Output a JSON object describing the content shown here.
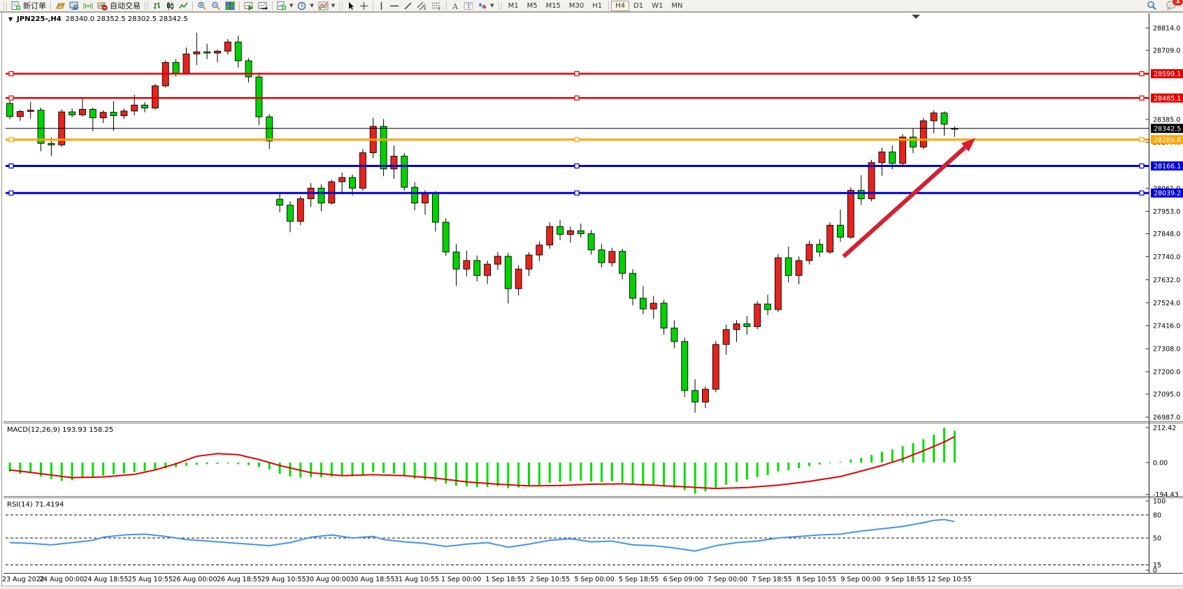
{
  "toolbar": {
    "new_order_label": "新订单",
    "autotrading_label": "自动交易",
    "timeframes": [
      "M1",
      "M5",
      "M15",
      "M30",
      "H1",
      "H4",
      "D1",
      "W1",
      "MN"
    ],
    "active_timeframe": "H4",
    "notification_badge": "1"
  },
  "chart_header": {
    "symbol_period": "JPN225-,H4",
    "ohlc_values": "28340.0 28352.5 28302.5 28342.5",
    "collapse_glyph": "▼"
  },
  "colors": {
    "bull": "#e6241e",
    "bear": "#00d400",
    "wick": "#000000",
    "macd_hist": "#00e000",
    "macd_signal": "#e60000",
    "rsi_line": "#3f97e8",
    "line_red": "#e60000",
    "line_orange": "#ffa500",
    "line_blue": "#0000dc",
    "current_line": "#000000",
    "arrow": "#d62030"
  },
  "chart_data": [
    {
      "type": "candlestick",
      "title": "JPN225-,H4",
      "last_ohlc": {
        "open": 28340.0,
        "high": 28352.5,
        "low": 28302.5,
        "close": 28342.5
      },
      "ylim": [
        26960,
        28850
      ],
      "y_ticks": [
        28814,
        28709,
        28385,
        28277,
        28061,
        27953,
        27848,
        27740,
        27632,
        27524,
        27416,
        27308,
        27200,
        27095,
        26987
      ],
      "hlines": [
        {
          "price": 28599.1,
          "color": "#e60000",
          "width": 2.5,
          "handles": true
        },
        {
          "price": 28485.1,
          "color": "#e60000",
          "width": 2.5,
          "handles": true
        },
        {
          "price": 28342.5,
          "color": "#000000",
          "width": 1,
          "handles": false,
          "current": true
        },
        {
          "price": 28289.8,
          "color": "#ffa500",
          "width": 3,
          "handles": true
        },
        {
          "price": 28166.1,
          "color": "#0000dc",
          "width": 3,
          "handles": true
        },
        {
          "price": 28039.2,
          "color": "#0000dc",
          "width": 3,
          "handles": true
        }
      ],
      "x_labels": [
        "23 Aug 2022",
        "24 Aug 00:00",
        "24 Aug 18:55",
        "25 Aug 10:55",
        "26 Aug 00:00",
        "26 Aug 18:55",
        "29 Aug 10:55",
        "30 Aug 00:00",
        "30 Aug 18:55",
        "31 Aug 10:55",
        "1 Sep 00:00",
        "1 Sep 18:55",
        "2 Sep 10:55",
        "5 Sep 00:00",
        "5 Sep 18:55",
        "6 Sep 09:00",
        "7 Sep 00:00",
        "7 Sep 18:55",
        "8 Sep 10:55",
        "9 Sep 00:00",
        "9 Sep 18:55",
        "12 Sep 10:55"
      ],
      "arrow": {
        "from_index": 80.3,
        "from_price": 27741,
        "to_index": 93.0,
        "to_price": 28297
      },
      "candles": [
        [
          28460,
          28472,
          28385,
          28398
        ],
        [
          28398,
          28430,
          28378,
          28422
        ],
        [
          28422,
          28468,
          28388,
          28428
        ],
        [
          28428,
          28440,
          28235,
          28272
        ],
        [
          28272,
          28300,
          28212,
          28265
        ],
        [
          28265,
          28432,
          28256,
          28420
        ],
        [
          28420,
          28436,
          28394,
          28406
        ],
        [
          28406,
          28482,
          28398,
          28432
        ],
        [
          28432,
          28440,
          28330,
          28392
        ],
        [
          28392,
          28428,
          28368,
          28418
        ],
        [
          28418,
          28470,
          28332,
          28402
        ],
        [
          28402,
          28436,
          28388,
          28424
        ],
        [
          28424,
          28500,
          28404,
          28452
        ],
        [
          28452,
          28466,
          28418,
          28438
        ],
        [
          28438,
          28552,
          28430,
          28542
        ],
        [
          28542,
          28662,
          28534,
          28652
        ],
        [
          28652,
          28668,
          28586,
          28602
        ],
        [
          28602,
          28722,
          28594,
          28692
        ],
        [
          28692,
          28792,
          28640,
          28702
        ],
        [
          28702,
          28740,
          28668,
          28696
        ],
        [
          28696,
          28712,
          28654,
          28705
        ],
        [
          28705,
          28762,
          28688,
          28748
        ],
        [
          28748,
          28778,
          28628,
          28660
        ],
        [
          28660,
          28672,
          28558,
          28584
        ],
        [
          28584,
          28600,
          28358,
          28397
        ],
        [
          28397,
          28410,
          28246,
          28283
        ],
        [
          28010,
          28034,
          27948,
          27982
        ],
        [
          27982,
          28000,
          27855,
          27906
        ],
        [
          27906,
          28026,
          27888,
          28012
        ],
        [
          28012,
          28086,
          27974,
          28062
        ],
        [
          28062,
          28080,
          27954,
          27992
        ],
        [
          27992,
          28102,
          27984,
          28092
        ],
        [
          28092,
          28136,
          28040,
          28112
        ],
        [
          28112,
          28126,
          28028,
          28062
        ],
        [
          28062,
          28246,
          28050,
          28228
        ],
        [
          28228,
          28392,
          28204,
          28352
        ],
        [
          28352,
          28386,
          28118,
          28152
        ],
        [
          28152,
          28262,
          28106,
          28212
        ],
        [
          28212,
          28226,
          28050,
          28066
        ],
        [
          28066,
          28090,
          27958,
          27992
        ],
        [
          27992,
          28052,
          27938,
          28036
        ],
        [
          28036,
          28048,
          27858,
          27902
        ],
        [
          27902,
          27920,
          27744,
          27762
        ],
        [
          27762,
          27800,
          27604,
          27682
        ],
        [
          27682,
          27768,
          27648,
          27722
        ],
        [
          27722,
          27746,
          27624,
          27652
        ],
        [
          27652,
          27722,
          27612,
          27705
        ],
        [
          27705,
          27762,
          27678,
          27742
        ],
        [
          27742,
          27758,
          27520,
          27590
        ],
        [
          27590,
          27700,
          27558,
          27682
        ],
        [
          27682,
          27762,
          27650,
          27748
        ],
        [
          27748,
          27812,
          27720,
          27795
        ],
        [
          27795,
          27902,
          27778,
          27882
        ],
        [
          27882,
          27912,
          27818,
          27845
        ],
        [
          27845,
          27882,
          27806,
          27862
        ],
        [
          27862,
          27896,
          27830,
          27848
        ],
        [
          27848,
          27866,
          27750,
          27772
        ],
        [
          27772,
          27800,
          27690,
          27712
        ],
        [
          27712,
          27782,
          27694,
          27765
        ],
        [
          27765,
          27778,
          27634,
          27662
        ],
        [
          27662,
          27682,
          27512,
          27545
        ],
        [
          27545,
          27602,
          27470,
          27495
        ],
        [
          27495,
          27556,
          27450,
          27522
        ],
        [
          27522,
          27538,
          27374,
          27405
        ],
        [
          27405,
          27442,
          27310,
          27342
        ],
        [
          27342,
          27360,
          27082,
          27112
        ],
        [
          27112,
          27165,
          27008,
          27058
        ],
        [
          27058,
          27132,
          27030,
          27118
        ],
        [
          27118,
          27345,
          27104,
          27328
        ],
        [
          27328,
          27422,
          27280,
          27398
        ],
        [
          27398,
          27442,
          27340,
          27425
        ],
        [
          27425,
          27462,
          27374,
          27412
        ],
        [
          27412,
          27532,
          27400,
          27518
        ],
        [
          27518,
          27562,
          27466,
          27492
        ],
        [
          27492,
          27752,
          27480,
          27735
        ],
        [
          27735,
          27788,
          27620,
          27652
        ],
        [
          27652,
          27742,
          27610,
          27722
        ],
        [
          27722,
          27815,
          27704,
          27798
        ],
        [
          27798,
          27822,
          27740,
          27762
        ],
        [
          27762,
          27902,
          27754,
          27888
        ],
        [
          27888,
          27962,
          27810,
          27832
        ],
        [
          27832,
          28065,
          27824,
          28052
        ],
        [
          28052,
          28122,
          27984,
          28012
        ],
        [
          28012,
          28195,
          28000,
          28182
        ],
        [
          28182,
          28252,
          28120,
          28232
        ],
        [
          28232,
          28262,
          28150,
          28178
        ],
        [
          28178,
          28315,
          28168,
          28302
        ],
        [
          28302,
          28342,
          28226,
          28255
        ],
        [
          28255,
          28392,
          28244,
          28378
        ],
        [
          28378,
          28428,
          28320,
          28415
        ],
        [
          28415,
          28422,
          28308,
          28362
        ],
        [
          28340,
          28352.5,
          28302.5,
          28342.5
        ]
      ]
    },
    {
      "type": "macd",
      "label": "MACD(12,26,9) 193.93 158.25",
      "main_value": 193.93,
      "signal_value": 158.25,
      "y_ticks": [
        "212.42",
        "0.00",
        "-194.43"
      ],
      "y_tick_values": [
        212.42,
        0,
        -194.43
      ],
      "ylim": [
        -205,
        235
      ],
      "histogram": [
        -55,
        -68,
        -62,
        -85,
        -100,
        -112,
        -108,
        -96,
        -88,
        -80,
        -72,
        -66,
        -58,
        -52,
        -45,
        -36,
        -28,
        -20,
        -14,
        -10,
        -8,
        -6,
        -10,
        -16,
        -28,
        -42,
        -68,
        -85,
        -92,
        -88,
        -90,
        -86,
        -80,
        -84,
        -72,
        -58,
        -64,
        -68,
        -84,
        -98,
        -104,
        -114,
        -128,
        -142,
        -146,
        -150,
        -148,
        -144,
        -156,
        -152,
        -144,
        -136,
        -124,
        -118,
        -112,
        -110,
        -116,
        -120,
        -114,
        -122,
        -134,
        -142,
        -138,
        -146,
        -154,
        -168,
        -190,
        -176,
        -158,
        -136,
        -118,
        -104,
        -88,
        -76,
        -54,
        -46,
        -34,
        -22,
        -12,
        -4,
        4,
        18,
        28,
        46,
        66,
        80,
        100,
        118,
        142,
        170,
        212.42,
        193.93
      ],
      "signal_keypoints": [
        [
          0,
          -45
        ],
        [
          3,
          -68
        ],
        [
          6,
          -92
        ],
        [
          9,
          -88
        ],
        [
          12,
          -72
        ],
        [
          14,
          -45
        ],
        [
          16,
          -8
        ],
        [
          18,
          38
        ],
        [
          20,
          54
        ],
        [
          22,
          48
        ],
        [
          24,
          18
        ],
        [
          26,
          -18
        ],
        [
          29,
          -62
        ],
        [
          32,
          -80
        ],
        [
          35,
          -74
        ],
        [
          38,
          -80
        ],
        [
          41,
          -95
        ],
        [
          44,
          -118
        ],
        [
          47,
          -132
        ],
        [
          50,
          -142
        ],
        [
          53,
          -140
        ],
        [
          56,
          -132
        ],
        [
          59,
          -130
        ],
        [
          62,
          -138
        ],
        [
          65,
          -148
        ],
        [
          68,
          -158
        ],
        [
          71,
          -152
        ],
        [
          74,
          -138
        ],
        [
          77,
          -115
        ],
        [
          80,
          -85
        ],
        [
          82,
          -52
        ],
        [
          84,
          -18
        ],
        [
          86,
          22
        ],
        [
          88,
          72
        ],
        [
          90,
          125
        ],
        [
          91,
          158.25
        ]
      ]
    },
    {
      "type": "rsi",
      "label": "RSI(14) 71.4194",
      "current_value": 71.4194,
      "levels": [
        80,
        50,
        15
      ],
      "y_ticks": [
        100,
        80,
        50,
        15,
        0
      ],
      "ylim": [
        0,
        100
      ],
      "line_keypoints": [
        [
          0,
          44
        ],
        [
          2,
          43
        ],
        [
          4,
          41
        ],
        [
          6,
          44
        ],
        [
          8,
          47
        ],
        [
          9,
          51
        ],
        [
          11,
          54
        ],
        [
          13,
          55
        ],
        [
          15,
          52
        ],
        [
          17,
          48
        ],
        [
          19,
          46
        ],
        [
          21,
          44
        ],
        [
          23,
          42
        ],
        [
          25,
          40
        ],
        [
          27,
          44
        ],
        [
          29,
          51
        ],
        [
          31,
          54
        ],
        [
          33,
          50
        ],
        [
          35,
          52
        ],
        [
          36,
          48
        ],
        [
          38,
          45
        ],
        [
          40,
          43
        ],
        [
          42,
          39
        ],
        [
          44,
          42
        ],
        [
          46,
          44
        ],
        [
          48,
          38
        ],
        [
          50,
          42
        ],
        [
          52,
          47
        ],
        [
          54,
          49
        ],
        [
          56,
          45
        ],
        [
          58,
          46
        ],
        [
          60,
          41
        ],
        [
          62,
          40
        ],
        [
          64,
          37
        ],
        [
          66,
          33
        ],
        [
          68,
          40
        ],
        [
          70,
          44
        ],
        [
          72,
          46
        ],
        [
          74,
          50
        ],
        [
          76,
          52
        ],
        [
          78,
          54
        ],
        [
          80,
          55
        ],
        [
          82,
          59
        ],
        [
          84,
          62
        ],
        [
          86,
          65
        ],
        [
          88,
          70
        ],
        [
          89,
          73
        ],
        [
          90,
          74
        ],
        [
          91,
          71.4194
        ]
      ]
    }
  ]
}
